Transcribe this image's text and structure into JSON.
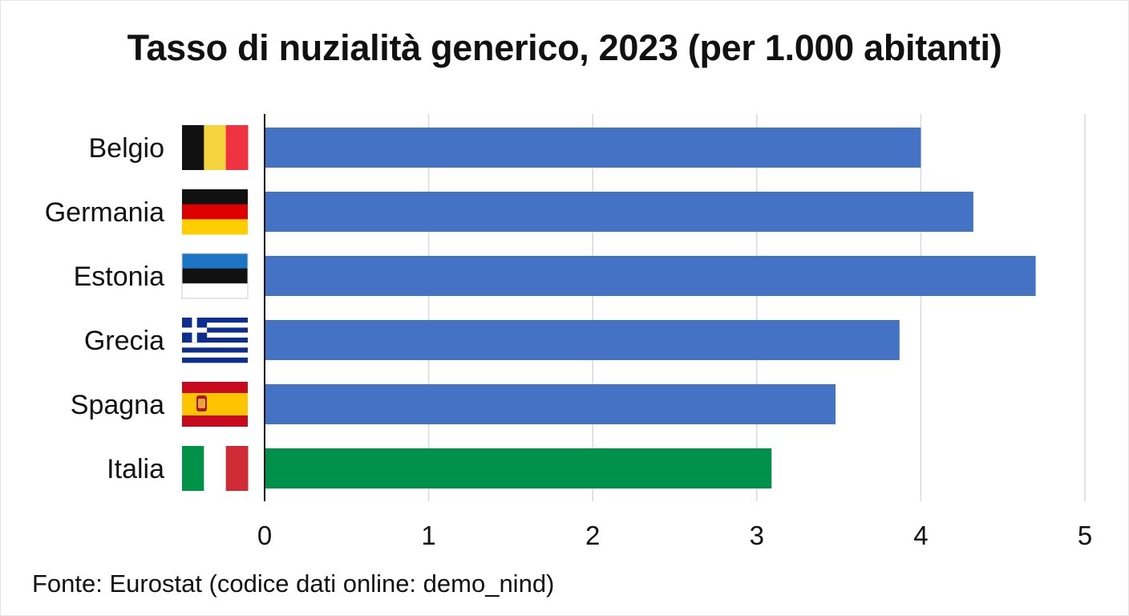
{
  "chart_data": {
    "type": "bar",
    "orientation": "horizontal",
    "title": "Tasso di nuzialità generico, 2023 (per 1.000 abitanti)",
    "categories": [
      "Belgio",
      "Germania",
      "Estonia",
      "Grecia",
      "Spagna",
      "Italia"
    ],
    "values": [
      4.0,
      4.32,
      4.7,
      3.87,
      3.48,
      3.09
    ],
    "bar_colors": [
      "#4472c4",
      "#4472c4",
      "#4472c4",
      "#4472c4",
      "#4472c4",
      "#00904a"
    ],
    "category_icons": [
      "flag-belgium-icon",
      "flag-germany-icon",
      "flag-estonia-icon",
      "flag-greece-icon",
      "flag-spain-icon",
      "flag-italy-icon"
    ],
    "xlim": [
      0,
      5
    ],
    "xticks": [
      "0",
      "1",
      "2",
      "3",
      "4",
      "5"
    ],
    "xlabel": "",
    "ylabel": "",
    "grid": "vertical",
    "legend": "none"
  },
  "source": "Fonte: Eurostat (codice dati online: demo_nind)"
}
